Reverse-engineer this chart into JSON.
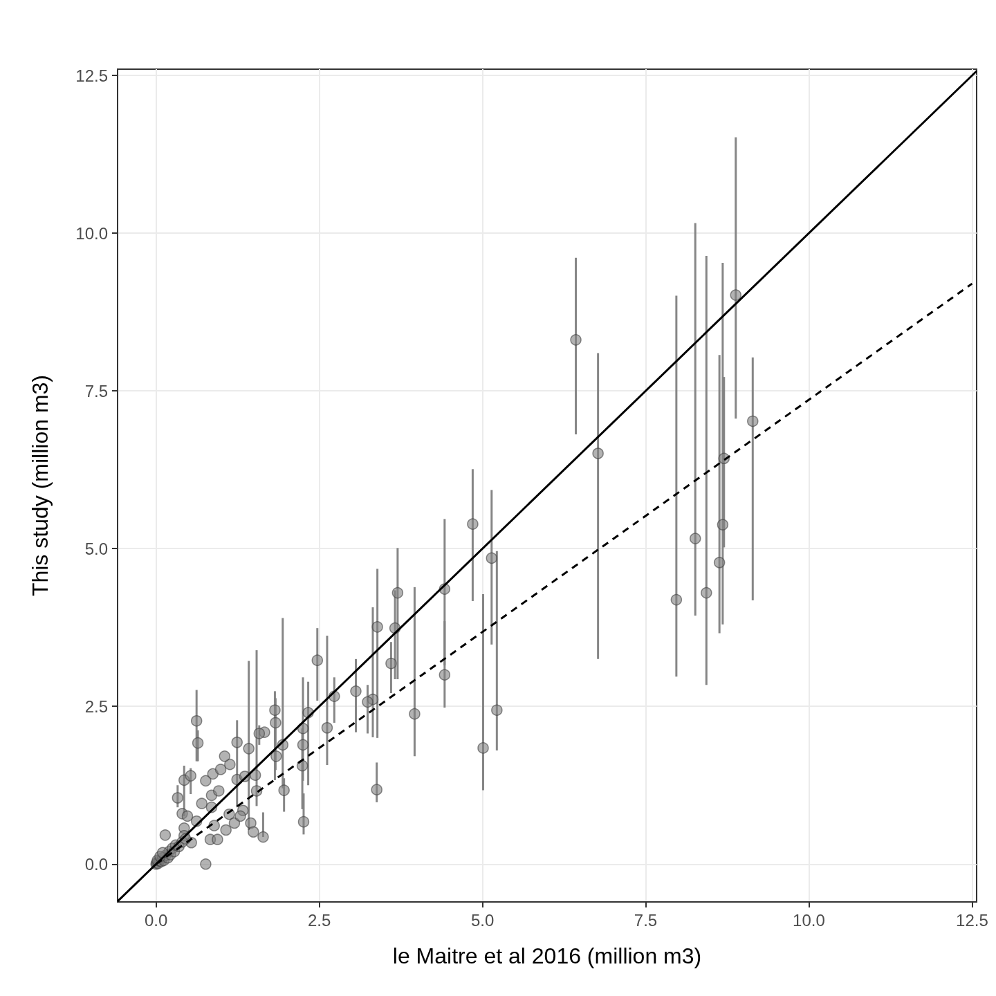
{
  "chart_data": {
    "type": "scatter",
    "xlabel": "le Maitre et al 2016 (million m3)",
    "ylabel": "This study (million m3)",
    "xlim": [
      -0.59,
      12.57
    ],
    "ylim": [
      -0.6,
      12.6
    ],
    "xticks": [
      {
        "value": 0,
        "label": "0.0"
      },
      2.5,
      {
        "value": 5,
        "label": "5.0"
      },
      7.5,
      {
        "value": 10,
        "label": "10.0"
      },
      12.5
    ],
    "yticks": [
      {
        "value": 0,
        "label": "0.0"
      },
      2.5,
      {
        "value": 5,
        "label": "5.0"
      },
      7.5,
      {
        "value": 10,
        "label": "10.0"
      },
      12.5
    ],
    "grid": true,
    "marker": "circle",
    "series": [
      {
        "color": "#808080",
        "x": [
          6.43,
          6.77,
          7.97,
          8.26,
          8.43,
          8.63,
          8.68,
          8.7,
          8.88,
          9.14,
          4.85,
          5.14,
          4.42,
          4.42,
          5.22,
          5.01,
          3.96,
          3.7,
          3.66,
          3.39,
          3.6,
          3.32,
          3.24,
          3.06,
          2.73,
          3.38,
          2.47,
          2.62,
          2.33,
          2.25,
          2.25,
          2.24,
          2.26,
          1.96,
          1.94,
          1.82,
          1.83,
          1.84,
          1.66,
          1.58,
          1.42,
          1.24,
          0.62,
          0.64,
          0.33,
          0.43,
          0.53,
          0.76,
          0.87,
          0.99,
          1.13,
          1.05,
          1.24,
          1.36,
          1.52,
          1.54,
          0.4,
          0.48,
          0.43,
          0.7,
          0.85,
          0.96,
          0.85,
          1.12,
          1.2,
          1.33,
          1.29,
          1.45,
          1.49,
          1.64,
          0.89,
          1.07,
          0.83,
          0.94,
          0.62,
          0.54,
          0.43,
          0.14,
          0.76,
          0,
          0.01,
          0.03,
          0.05,
          0.02,
          0.08,
          0.1,
          0.12,
          0.15,
          0.18,
          0.2,
          0.22,
          0.25,
          0.28,
          0.3,
          0.35,
          0.4,
          0.06,
          0.1,
          0.45
        ],
        "values": [
          8.31,
          6.51,
          4.19,
          5.16,
          4.3,
          4.78,
          5.38,
          6.43,
          9.02,
          7.02,
          5.39,
          4.85,
          4.36,
          3.0,
          2.44,
          1.84,
          2.38,
          4.3,
          3.74,
          3.76,
          3.18,
          2.61,
          2.57,
          2.74,
          2.66,
          1.18,
          3.23,
          2.16,
          2.4,
          2.15,
          1.89,
          1.56,
          0.67,
          1.17,
          1.89,
          2.44,
          2.24,
          1.71,
          2.09,
          2.07,
          1.83,
          1.93,
          2.27,
          1.92,
          1.05,
          1.33,
          1.4,
          1.32,
          1.43,
          1.5,
          1.58,
          1.71,
          1.34,
          1.39,
          1.41,
          1.16,
          0.8,
          0.76,
          0.57,
          0.96,
          1.09,
          1.16,
          0.9,
          0.79,
          0.65,
          0.85,
          0.76,
          0.65,
          0.51,
          0.43,
          0.61,
          0.54,
          0.39,
          0.39,
          0.68,
          0.34,
          0.45,
          0.46,
          0.0,
          0,
          0.02,
          0.01,
          0.05,
          0.06,
          0.04,
          0.1,
          0.06,
          0.14,
          0.1,
          0.2,
          0.15,
          0.25,
          0.2,
          0.3,
          0.28,
          0.35,
          0.12,
          0.18,
          0.4
        ],
        "errors": [
          [
            6.81,
            9.61
          ],
          [
            3.25,
            8.1
          ],
          [
            2.97,
            9.01
          ],
          [
            3.94,
            10.16
          ],
          [
            2.84,
            9.64
          ],
          [
            3.66,
            8.07
          ],
          [
            3.8,
            9.53
          ],
          [
            5.02,
            7.72
          ],
          [
            7.06,
            11.52
          ],
          [
            4.18,
            8.03
          ],
          [
            4.17,
            6.26
          ],
          [
            3.48,
            5.93
          ],
          [
            3.15,
            5.47
          ],
          [
            2.48,
            3.85
          ],
          [
            1.8,
            4.96
          ],
          [
            1.17,
            4.28
          ],
          [
            1.71,
            4.39
          ],
          [
            2.93,
            5.01
          ],
          [
            2.93,
            4.34
          ],
          [
            2.0,
            4.68
          ],
          [
            2.71,
            3.52
          ],
          [
            2.01,
            4.07
          ],
          [
            2.07,
            2.84
          ],
          [
            2.09,
            3.25
          ],
          [
            2.24,
            2.96
          ],
          [
            0.98,
            1.61
          ],
          [
            2.59,
            3.74
          ],
          [
            1.57,
            3.62
          ],
          [
            1.25,
            2.89
          ],
          [
            1.32,
            2.96
          ],
          null,
          [
            0.87,
            2.15
          ],
          [
            0.47,
            1.12
          ],
          [
            0.83,
            1.36
          ],
          [
            1.2,
            3.9
          ],
          [
            1.33,
            2.74
          ],
          [
            1.49,
            2.63
          ],
          null,
          null,
          [
            1.89,
            2.2
          ],
          [
            0.54,
            3.22
          ],
          [
            0.9,
            2.28
          ],
          [
            1.63,
            2.76
          ],
          [
            1.63,
            2.12
          ],
          [
            0.9,
            1.25
          ],
          [
            0.76,
            1.56
          ],
          [
            1.11,
            1.52
          ],
          null,
          null,
          null,
          null,
          null,
          null,
          null,
          null,
          [
            0.92,
            3.39
          ],
          null,
          null,
          null,
          null,
          null,
          null,
          null,
          null,
          null,
          null,
          null,
          null,
          null,
          [
            0.43,
            0.82
          ],
          null,
          null,
          null,
          null,
          null,
          null,
          null,
          null,
          null,
          null,
          null,
          null,
          null,
          null,
          null,
          null,
          null,
          null,
          null,
          null,
          null,
          null,
          null,
          null,
          null,
          null,
          null,
          null,
          null
        ]
      },
      {
        "type": "line",
        "color": "#000000",
        "line_style": "solid",
        "marker": "none",
        "x": [
          -0.59,
          12.57
        ],
        "values": [
          -0.59,
          12.57
        ]
      },
      {
        "type": "line",
        "color": "#000000",
        "line_style": "dashed",
        "marker": "none",
        "x": [
          0,
          12.5
        ],
        "values": [
          0,
          9.2
        ]
      }
    ]
  }
}
